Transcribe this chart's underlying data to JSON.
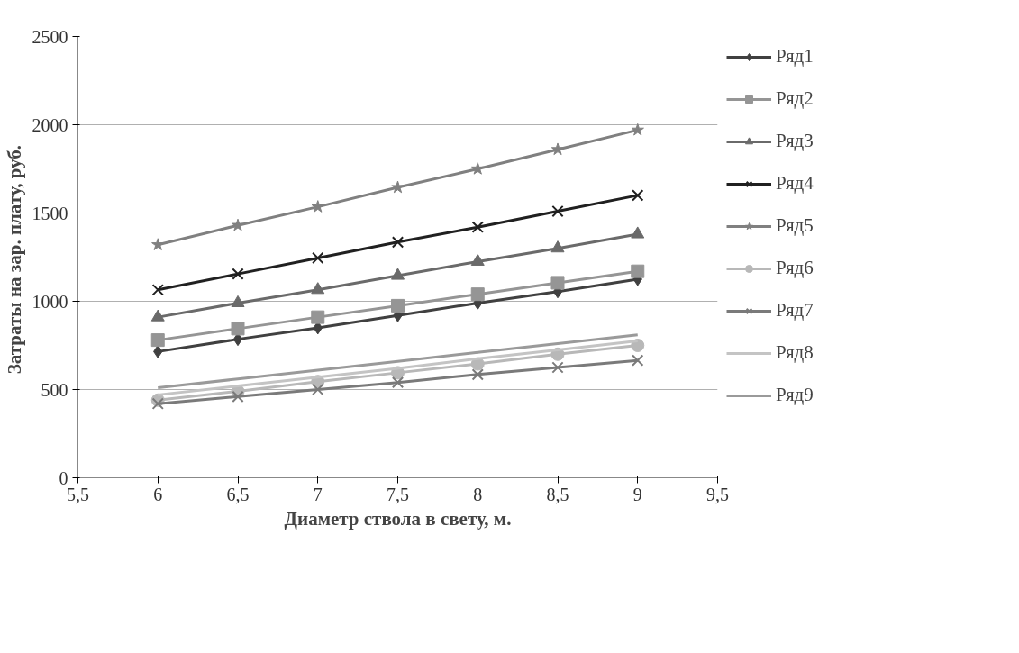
{
  "chart_data": {
    "type": "line",
    "xlabel": "Диаметр ствола в свету, м.",
    "ylabel": "Затраты на  зар. плату, руб.",
    "x": [
      6,
      6.5,
      7,
      7.5,
      8,
      8.5,
      9
    ],
    "xlim": [
      5.5,
      9.5
    ],
    "xticks": [
      {
        "value": 5.5,
        "label": "5,5"
      },
      6,
      {
        "value": 6.5,
        "label": "6,5"
      },
      7,
      {
        "value": 7.5,
        "label": "7,5"
      },
      8,
      {
        "value": 8.5,
        "label": "8,5"
      },
      9,
      {
        "value": 9.5,
        "label": "9,5"
      }
    ],
    "ylim": [
      0,
      2500
    ],
    "yticks": [
      0,
      500,
      1000,
      1500,
      2000,
      2500
    ],
    "grid": "y",
    "legend": "right",
    "series": [
      {
        "name": "Ряд1",
        "color": "#404040",
        "marker": "diamond",
        "values": [
          715,
          785,
          850,
          920,
          990,
          1055,
          1125
        ]
      },
      {
        "name": "Ряд2",
        "color": "#959595",
        "marker": "square",
        "values": [
          780,
          845,
          910,
          975,
          1040,
          1105,
          1170
        ]
      },
      {
        "name": "Ряд3",
        "color": "#6a6a6a",
        "marker": "triangle",
        "values": [
          910,
          990,
          1065,
          1145,
          1225,
          1300,
          1380
        ]
      },
      {
        "name": "Ряд4",
        "color": "#202020",
        "marker": "cross",
        "values": [
          1065,
          1155,
          1245,
          1335,
          1420,
          1510,
          1600
        ]
      },
      {
        "name": "Ряд5",
        "color": "#808080",
        "marker": "star",
        "values": [
          1320,
          1430,
          1535,
          1645,
          1750,
          1860,
          1970
        ]
      },
      {
        "name": "Ряд6",
        "color": "#b8b8b8",
        "marker": "circle",
        "values": [
          440,
          490,
          545,
          595,
          645,
          700,
          750
        ]
      },
      {
        "name": "Ряд7",
        "color": "#7a7a7a",
        "marker": "cross",
        "values": [
          420,
          460,
          500,
          540,
          585,
          625,
          665
        ]
      },
      {
        "name": "Ряд8",
        "color": "#c4c4c4",
        "marker": "none",
        "values": [
          470,
          520,
          570,
          620,
          675,
          725,
          775
        ]
      },
      {
        "name": "Ряд9",
        "color": "#9a9a9a",
        "marker": "none",
        "values": [
          510,
          560,
          610,
          660,
          710,
          760,
          810
        ]
      }
    ]
  }
}
